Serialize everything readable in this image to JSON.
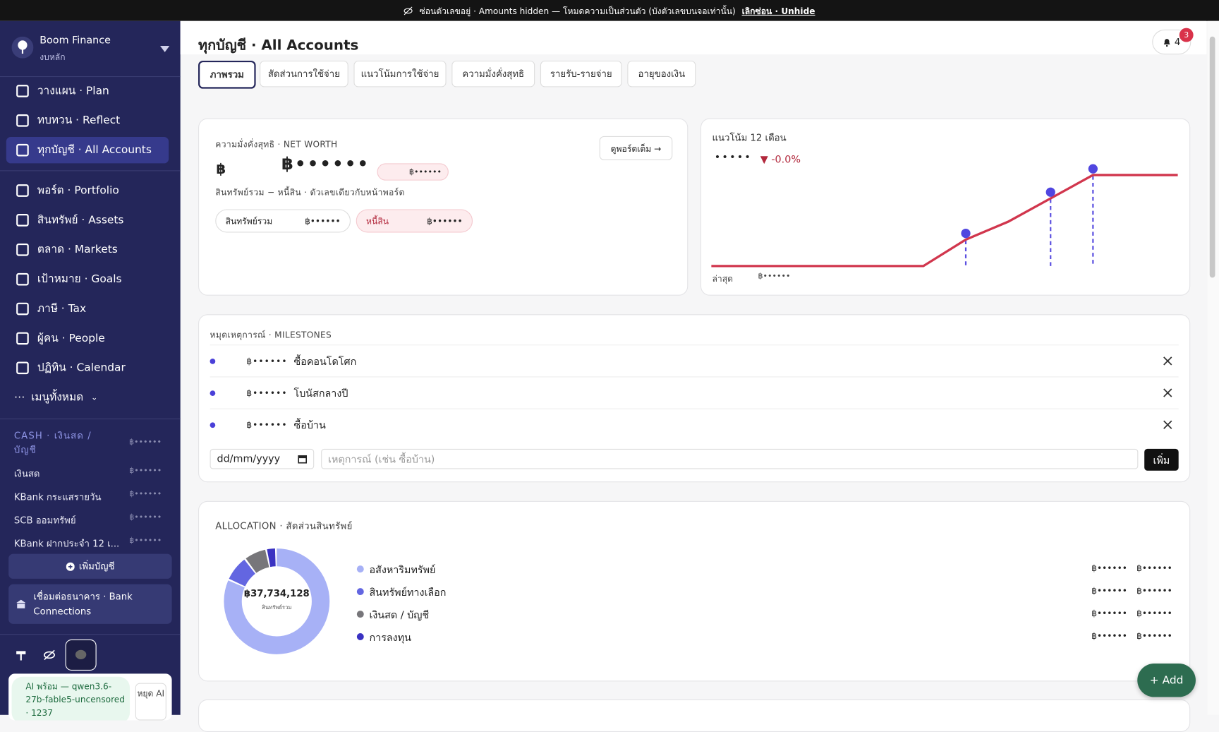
{
  "banner": {
    "text": "ซ่อนตัวเลขอยู่ · Amounts hidden — โหมดความเป็นส่วนตัว (บังตัวเลขบนจอเท่านั้น)",
    "link": "เลิกซ่อน · Unhide"
  },
  "sidebar": {
    "brand": "Boom Finance",
    "subtitle": "งบหลัก",
    "nav": [
      "วางแผน · Plan",
      "ทบทวน · Reflect",
      "ทุกบัญชี · All Accounts",
      "พอร์ต · Portfolio",
      "สินทรัพย์ · Assets",
      "ตลาด · Markets",
      "เป้าหมาย · Goals",
      "ภาษี · Tax",
      "ผู้คน · People",
      "ปฏิทิน · Calendar"
    ],
    "more": "เมนูทั้งหมด",
    "cash_title": "CASH · เงินสด / บัญชี",
    "cash_total": "฿••••••",
    "accounts": [
      {
        "name": "เงินสด",
        "amount": "฿••••••"
      },
      {
        "name": "KBank กระแสรายวัน",
        "amount": "฿••••••"
      },
      {
        "name": "SCB ออมทรัพย์",
        "amount": "฿••••••"
      },
      {
        "name": "KBank ฝากประจำ 12 เ...",
        "amount": "฿••••••"
      }
    ],
    "add_account": "เพิ่มบัญชี",
    "bank": "เชื่อมต่อธนาคาร · Bank Connections",
    "ai_status": "AI พร้อม — qwen3.6-27b-fable5-uncensored · 1237",
    "ai_stop": "หยุด AI"
  },
  "header": {
    "title": "ทุกบัญชี · All Accounts",
    "notifications": 4,
    "badge": 3
  },
  "tabs": [
    "ภาพรวม",
    "สัดส่วนการใช้จ่าย",
    "แนวโน้มการใช้จ่าย",
    "ความมั่งคั่งสุทธิ",
    "รายรับ-รายจ่าย",
    "อายุของเงิน"
  ],
  "net_worth": {
    "title": "ความมั่งคั่งสุทธิ · NET WORTH",
    "currency": "฿",
    "amount": "฿••••••",
    "change": "฿••••••",
    "button": "ดูพอร์ตเต็ม →",
    "note": "สินทรัพย์รวม − หนี้สิน · ตัวเลขเดียวกับหน้าพอร์ต",
    "assets_label": "สินทรัพย์รวม",
    "assets_amount": "฿••••••",
    "liabilities_label": "หนี้สิน",
    "liabilities_amount": "฿••••••"
  },
  "trend": {
    "title": "แนวโน้ม 12 เดือน",
    "hidden": "•••••",
    "change": "▼ -0.0%",
    "latest_label": "ล่าสุด",
    "latest_amount": "฿••••••",
    "values": [
      0,
      0,
      0,
      0,
      0,
      0,
      34,
      57,
      87,
      117,
      117,
      117
    ]
  },
  "milestones": {
    "title": "หมุดเหตุการณ์ · MILESTONES",
    "items": [
      {
        "amount": "฿••••••",
        "label": "ซื้อคอนโดโศก"
      },
      {
        "amount": "฿••••••",
        "label": "โบนัสกลางปี"
      },
      {
        "amount": "฿••••••",
        "label": "ซื้อบ้าน"
      }
    ],
    "date_placeholder": "dd/mm/yyyy",
    "event_placeholder": "เหตุการณ์ (เช่น ซื้อบ้าน)",
    "add": "เพิ่ม"
  },
  "allocation": {
    "title": "ALLOCATION · สัดส่วนสินทรัพย์",
    "total": "฿37,734,128",
    "total_label": "สินทรัพย์รวม",
    "items": [
      {
        "name": "อสังหาริมทรัพย์",
        "color": "#a7b1f6",
        "share": 82,
        "amount": "฿••••••",
        "value": "฿••••••"
      },
      {
        "name": "สินทรัพย์ทางเลือก",
        "color": "#6366e1",
        "share": 8,
        "amount": "฿••••••",
        "value": "฿••••••"
      },
      {
        "name": "เงินสด / บัญชี",
        "color": "#77767a",
        "share": 7,
        "amount": "฿••••••",
        "value": "฿••••••"
      },
      {
        "name": "การลงทุน",
        "color": "#3a32c2",
        "share": 3,
        "amount": "฿••••••",
        "value": "฿••••••"
      }
    ]
  },
  "fab": "+ Add"
}
